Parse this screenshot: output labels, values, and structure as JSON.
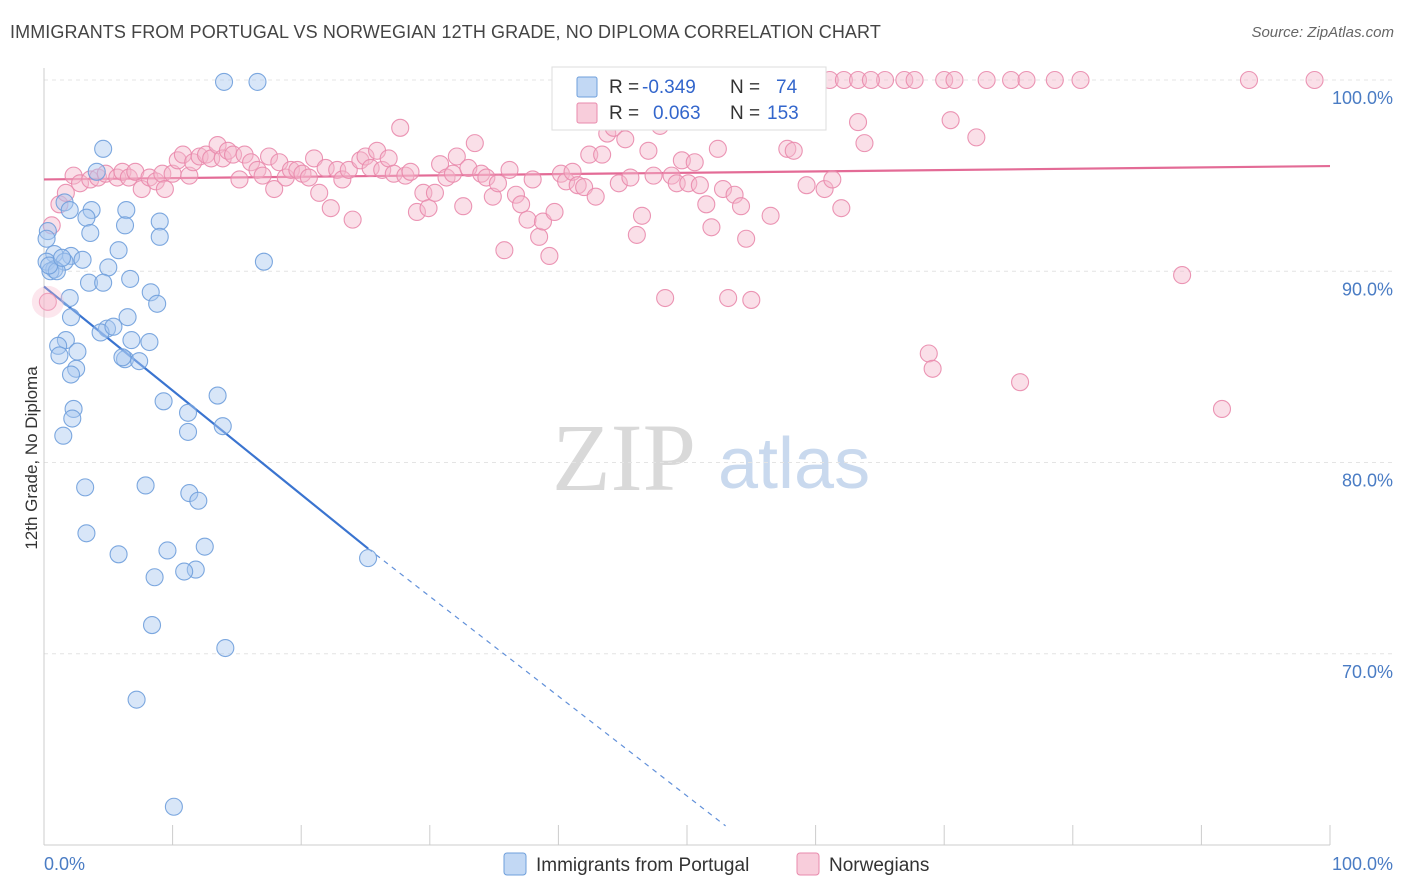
{
  "title": "IMMIGRANTS FROM PORTUGAL VS NORWEGIAN 12TH GRADE, NO DIPLOMA CORRELATION CHART",
  "source": "Source: ZipAtlas.com",
  "watermark": {
    "zip": "ZIP",
    "atlas": "atlas"
  },
  "legend": {
    "rows": [
      {
        "r_label": "R =",
        "r_value": "-0.349",
        "n_label": "N =",
        "n_value": "74",
        "color": "#a8c8f0"
      },
      {
        "r_label": "R =",
        "r_value": "0.063",
        "n_label": "N =",
        "n_value": "153",
        "color": "#f5b8cc"
      }
    ]
  },
  "bottom_legend": [
    {
      "label": "Immigrants from Portugal",
      "color": "#a8c8f0"
    },
    {
      "label": "Norwegians",
      "color": "#f5b8cc"
    }
  ],
  "chart_data": {
    "type": "scatter",
    "title": "IMMIGRANTS FROM PORTUGAL VS NORWEGIAN 12TH GRADE, NO DIPLOMA CORRELATION CHART",
    "xlabel": "",
    "ylabel": "12th Grade, No Diploma",
    "xlim": [
      0,
      100
    ],
    "ylim": [
      60,
      100
    ],
    "x_tick_labels": [
      "0.0%",
      "100.0%"
    ],
    "y_ticks": [
      70,
      80,
      90,
      100
    ],
    "y_tick_labels": [
      "70.0%",
      "80.0%",
      "90.0%",
      "100.0%"
    ],
    "grid": true,
    "legend_position": "top-center",
    "series": [
      {
        "name": "Immigrants from Portugal",
        "color": "#a8c8f0",
        "stroke": "#6f9fdb",
        "trend": {
          "x": [
            0,
            25.2
          ],
          "y": [
            89.2,
            75.5
          ],
          "dashed_to": [
            53,
            61.0
          ],
          "color": "#3a74d0"
        },
        "points": [
          [
            14,
            99.9
          ],
          [
            16.6,
            99.9
          ],
          [
            4.6,
            96.4
          ],
          [
            4.1,
            95.2
          ],
          [
            1.6,
            93.6
          ],
          [
            2.0,
            93.2
          ],
          [
            3.7,
            93.2
          ],
          [
            6.4,
            93.2
          ],
          [
            3.3,
            92.8
          ],
          [
            9.0,
            92.6
          ],
          [
            6.3,
            92.4
          ],
          [
            0.3,
            92.1
          ],
          [
            3.6,
            92.0
          ],
          [
            0.2,
            91.7
          ],
          [
            9.0,
            91.8
          ],
          [
            5.8,
            91.1
          ],
          [
            0.8,
            90.9
          ],
          [
            2.1,
            90.8
          ],
          [
            3.0,
            90.6
          ],
          [
            1.6,
            90.5
          ],
          [
            0.2,
            90.5
          ],
          [
            17.1,
            90.5
          ],
          [
            0.8,
            90.1
          ],
          [
            0.5,
            90.0
          ],
          [
            1.0,
            90.0
          ],
          [
            5.0,
            90.2
          ],
          [
            6.7,
            89.6
          ],
          [
            3.5,
            89.4
          ],
          [
            4.6,
            89.4
          ],
          [
            8.3,
            88.9
          ],
          [
            2.0,
            88.6
          ],
          [
            8.8,
            88.3
          ],
          [
            2.1,
            87.6
          ],
          [
            6.5,
            87.6
          ],
          [
            4.9,
            87.0
          ],
          [
            4.4,
            86.8
          ],
          [
            1.7,
            86.4
          ],
          [
            6.8,
            86.4
          ],
          [
            8.2,
            86.3
          ],
          [
            1.1,
            86.1
          ],
          [
            2.6,
            85.8
          ],
          [
            1.2,
            85.6
          ],
          [
            6.3,
            85.4
          ],
          [
            7.4,
            85.3
          ],
          [
            2.5,
            84.9
          ],
          [
            2.1,
            84.6
          ],
          [
            13.5,
            83.5
          ],
          [
            9.3,
            83.2
          ],
          [
            11.2,
            82.6
          ],
          [
            2.3,
            82.8
          ],
          [
            2.2,
            82.3
          ],
          [
            13.9,
            81.9
          ],
          [
            1.5,
            81.4
          ],
          [
            11.2,
            81.6
          ],
          [
            3.2,
            78.7
          ],
          [
            7.9,
            78.8
          ],
          [
            11.3,
            78.4
          ],
          [
            12.0,
            78.0
          ],
          [
            3.3,
            76.3
          ],
          [
            12.5,
            75.6
          ],
          [
            5.8,
            75.2
          ],
          [
            9.6,
            75.4
          ],
          [
            25.2,
            75.0
          ],
          [
            11.8,
            74.4
          ],
          [
            10.9,
            74.3
          ],
          [
            8.6,
            74.0
          ],
          [
            8.4,
            71.5
          ],
          [
            14.1,
            70.3
          ],
          [
            7.2,
            67.6
          ],
          [
            10.1,
            62.0
          ],
          [
            0.4,
            90.3
          ],
          [
            1.4,
            90.7
          ],
          [
            6.1,
            85.5
          ],
          [
            5.4,
            87.1
          ]
        ]
      },
      {
        "name": "Norwegians",
        "color": "#f5b8cc",
        "stroke": "#e98aac",
        "trend": {
          "x": [
            0,
            100
          ],
          "y": [
            94.8,
            95.5
          ],
          "color": "#e36b96"
        },
        "points": [
          [
            0.3,
            88.4
          ],
          [
            0.6,
            92.4
          ],
          [
            1.2,
            93.5
          ],
          [
            1.7,
            94.1
          ],
          [
            2.3,
            95.0
          ],
          [
            2.8,
            94.6
          ],
          [
            3.6,
            94.8
          ],
          [
            4.2,
            94.9
          ],
          [
            4.8,
            95.1
          ],
          [
            5.7,
            94.9
          ],
          [
            6.1,
            95.2
          ],
          [
            6.6,
            94.9
          ],
          [
            7.1,
            95.2
          ],
          [
            7.6,
            94.3
          ],
          [
            8.2,
            94.9
          ],
          [
            8.7,
            94.7
          ],
          [
            9.2,
            95.1
          ],
          [
            9.4,
            94.3
          ],
          [
            10.0,
            95.1
          ],
          [
            10.4,
            95.8
          ],
          [
            10.8,
            96.1
          ],
          [
            11.3,
            95.0
          ],
          [
            11.6,
            95.7
          ],
          [
            12.1,
            96.0
          ],
          [
            12.6,
            96.1
          ],
          [
            13.0,
            95.9
          ],
          [
            13.5,
            96.6
          ],
          [
            13.9,
            95.9
          ],
          [
            14.3,
            96.3
          ],
          [
            14.7,
            96.1
          ],
          [
            15.2,
            94.8
          ],
          [
            15.6,
            96.1
          ],
          [
            16.1,
            95.7
          ],
          [
            16.6,
            95.3
          ],
          [
            17.0,
            95.0
          ],
          [
            17.5,
            96.0
          ],
          [
            17.9,
            94.3
          ],
          [
            18.3,
            95.7
          ],
          [
            18.8,
            94.9
          ],
          [
            19.2,
            95.3
          ],
          [
            19.7,
            95.3
          ],
          [
            20.1,
            95.1
          ],
          [
            20.6,
            94.9
          ],
          [
            21.0,
            95.9
          ],
          [
            21.4,
            94.1
          ],
          [
            21.9,
            95.4
          ],
          [
            22.3,
            93.3
          ],
          [
            22.8,
            95.3
          ],
          [
            23.2,
            94.8
          ],
          [
            23.7,
            95.3
          ],
          [
            24.0,
            92.7
          ],
          [
            24.6,
            95.8
          ],
          [
            25.0,
            96.0
          ],
          [
            25.4,
            95.4
          ],
          [
            25.9,
            96.3
          ],
          [
            26.3,
            95.3
          ],
          [
            26.8,
            95.9
          ],
          [
            27.2,
            95.1
          ],
          [
            27.7,
            97.5
          ],
          [
            28.1,
            95.0
          ],
          [
            28.5,
            95.2
          ],
          [
            29.0,
            93.1
          ],
          [
            29.5,
            94.1
          ],
          [
            29.9,
            93.3
          ],
          [
            30.4,
            94.1
          ],
          [
            30.8,
            95.6
          ],
          [
            31.3,
            94.9
          ],
          [
            31.8,
            95.1
          ],
          [
            32.1,
            96.0
          ],
          [
            32.6,
            93.4
          ],
          [
            33.0,
            95.4
          ],
          [
            33.5,
            96.7
          ],
          [
            34.0,
            95.1
          ],
          [
            34.4,
            94.9
          ],
          [
            34.9,
            93.9
          ],
          [
            35.3,
            94.6
          ],
          [
            35.8,
            91.1
          ],
          [
            36.2,
            95.3
          ],
          [
            36.7,
            94.0
          ],
          [
            37.1,
            93.5
          ],
          [
            37.6,
            92.7
          ],
          [
            38.0,
            94.8
          ],
          [
            38.5,
            91.8
          ],
          [
            38.8,
            92.6
          ],
          [
            39.3,
            90.8
          ],
          [
            39.7,
            93.1
          ],
          [
            40.2,
            95.1
          ],
          [
            40.6,
            94.7
          ],
          [
            41.1,
            95.2
          ],
          [
            41.5,
            94.5
          ],
          [
            42.0,
            94.4
          ],
          [
            42.4,
            96.1
          ],
          [
            42.9,
            93.9
          ],
          [
            43.4,
            96.1
          ],
          [
            43.8,
            97.2
          ],
          [
            44.3,
            97.5
          ],
          [
            44.7,
            94.6
          ],
          [
            45.2,
            96.9
          ],
          [
            45.6,
            94.9
          ],
          [
            46.1,
            91.9
          ],
          [
            46.5,
            92.9
          ],
          [
            47.0,
            96.3
          ],
          [
            47.4,
            95.0
          ],
          [
            47.9,
            97.6
          ],
          [
            48.3,
            88.6
          ],
          [
            48.8,
            95.0
          ],
          [
            49.2,
            94.6
          ],
          [
            49.6,
            95.8
          ],
          [
            50.1,
            94.6
          ],
          [
            50.6,
            95.7
          ],
          [
            51.0,
            94.5
          ],
          [
            51.5,
            93.5
          ],
          [
            51.9,
            92.3
          ],
          [
            52.4,
            96.4
          ],
          [
            52.8,
            94.3
          ],
          [
            53.2,
            88.6
          ],
          [
            53.7,
            94.0
          ],
          [
            54.2,
            93.4
          ],
          [
            54.6,
            91.7
          ],
          [
            55.0,
            88.5
          ],
          [
            56.5,
            92.9
          ],
          [
            57.8,
            96.4
          ],
          [
            58.3,
            96.3
          ],
          [
            59.3,
            94.5
          ],
          [
            60.7,
            94.3
          ],
          [
            61.3,
            94.8
          ],
          [
            62.0,
            93.3
          ],
          [
            63.3,
            97.8
          ],
          [
            63.8,
            96.7
          ],
          [
            65.4,
            100.0
          ],
          [
            68.8,
            85.7
          ],
          [
            70.5,
            97.9
          ],
          [
            72.5,
            97.0
          ],
          [
            75.2,
            100.0
          ],
          [
            76.4,
            100.0
          ],
          [
            78.6,
            100.0
          ],
          [
            80.6,
            100.0
          ],
          [
            88.5,
            89.8
          ],
          [
            91.6,
            82.8
          ],
          [
            98.8,
            100.0
          ],
          [
            59.0,
            100.0
          ],
          [
            61.1,
            100.0
          ],
          [
            62.2,
            100.0
          ],
          [
            63.3,
            100.0
          ],
          [
            64.3,
            100.0
          ],
          [
            66.9,
            100.0
          ],
          [
            67.7,
            100.0
          ],
          [
            70.0,
            100.0
          ],
          [
            69.1,
            84.9
          ],
          [
            70.8,
            100.0
          ],
          [
            73.3,
            100.0
          ],
          [
            93.7,
            100.0
          ],
          [
            75.9,
            84.2
          ]
        ]
      }
    ]
  }
}
